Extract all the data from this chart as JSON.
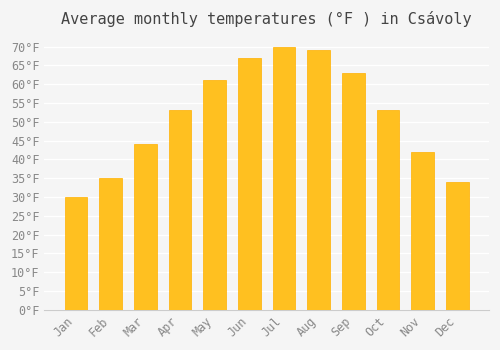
{
  "title": "Average monthly temperatures (°F ) in Csávoly",
  "months": [
    "Jan",
    "Feb",
    "Mar",
    "Apr",
    "May",
    "Jun",
    "Jul",
    "Aug",
    "Sep",
    "Oct",
    "Nov",
    "Dec"
  ],
  "values": [
    30,
    35,
    44,
    53,
    61,
    67,
    70,
    69,
    63,
    53,
    42,
    34
  ],
  "bar_color_top": "#FFC020",
  "bar_color_bottom": "#FFB000",
  "background_color": "#f5f5f5",
  "grid_color": "#ffffff",
  "ylim": [
    0,
    73
  ],
  "yticks": [
    0,
    5,
    10,
    15,
    20,
    25,
    30,
    35,
    40,
    45,
    50,
    55,
    60,
    65,
    70
  ],
  "title_fontsize": 11,
  "tick_fontsize": 8.5,
  "bar_edge_color": "#c0a000"
}
